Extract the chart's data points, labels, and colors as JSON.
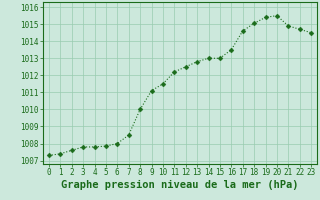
{
  "x": [
    0,
    1,
    2,
    3,
    4,
    5,
    6,
    7,
    8,
    9,
    10,
    11,
    12,
    13,
    14,
    15,
    16,
    17,
    18,
    19,
    20,
    21,
    22,
    23
  ],
  "y": [
    1007.3,
    1007.4,
    1007.6,
    1007.8,
    1007.8,
    1007.85,
    1008.0,
    1008.5,
    1010.0,
    1011.1,
    1011.5,
    1012.2,
    1012.5,
    1012.8,
    1013.0,
    1013.0,
    1013.5,
    1014.6,
    1015.05,
    1015.4,
    1015.5,
    1014.9,
    1014.7,
    1014.5
  ],
  "line_color": "#1a6b1a",
  "marker": "D",
  "marker_size": 2.5,
  "background_color": "#cce8dc",
  "grid_color": "#99ccb0",
  "xlabel": "Graphe pression niveau de la mer (hPa)",
  "xlabel_fontsize": 7.5,
  "ylabel_ticks": [
    1007,
    1008,
    1009,
    1010,
    1011,
    1012,
    1013,
    1014,
    1015,
    1016
  ],
  "ylim": [
    1006.8,
    1016.3
  ],
  "xlim": [
    -0.5,
    23.5
  ],
  "xtick_labels": [
    "0",
    "1",
    "2",
    "3",
    "4",
    "5",
    "6",
    "7",
    "8",
    "9",
    "10",
    "11",
    "12",
    "13",
    "14",
    "15",
    "16",
    "17",
    "18",
    "19",
    "20",
    "21",
    "22",
    "23"
  ],
  "tick_fontsize": 5.5,
  "title_color": "#1a6b1a"
}
